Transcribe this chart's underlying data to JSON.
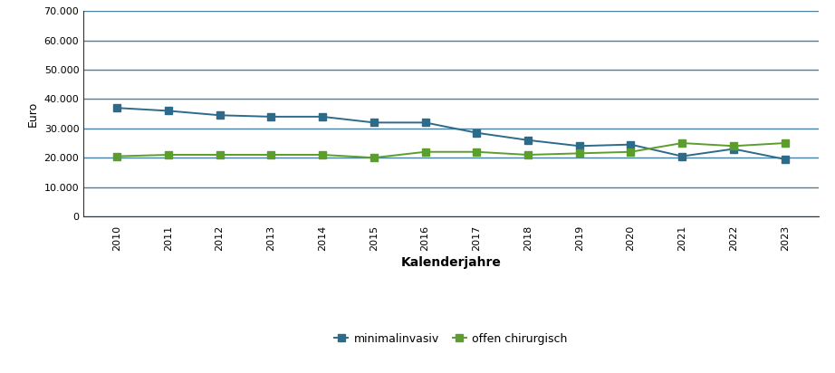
{
  "years": [
    2010,
    2011,
    2012,
    2013,
    2014,
    2015,
    2016,
    2017,
    2018,
    2019,
    2020,
    2021,
    2022,
    2023
  ],
  "minimalinvasiv": [
    37000,
    36000,
    34500,
    34000,
    34000,
    32000,
    32000,
    28500,
    26000,
    24000,
    24500,
    20500,
    23000,
    19500
  ],
  "offen_chirurgisch": [
    20500,
    21000,
    21000,
    21000,
    21000,
    20000,
    22000,
    22000,
    21000,
    21500,
    22000,
    25000,
    24000,
    25000
  ],
  "color_minimal": "#2d6b8a",
  "color_offen": "#5c9e2e",
  "grid_color": "#4a7fa0",
  "background_color": "#ffffff",
  "xlabel": "Kalenderjahre",
  "ylabel": "Euro",
  "ylim": [
    0,
    70000
  ],
  "yticks": [
    0,
    10000,
    20000,
    30000,
    40000,
    50000,
    60000,
    70000
  ],
  "legend_minimal": "minimalinvasiv",
  "legend_offen": "offen chirurgisch",
  "marker": "s",
  "linewidth": 1.4,
  "markersize": 5.5
}
